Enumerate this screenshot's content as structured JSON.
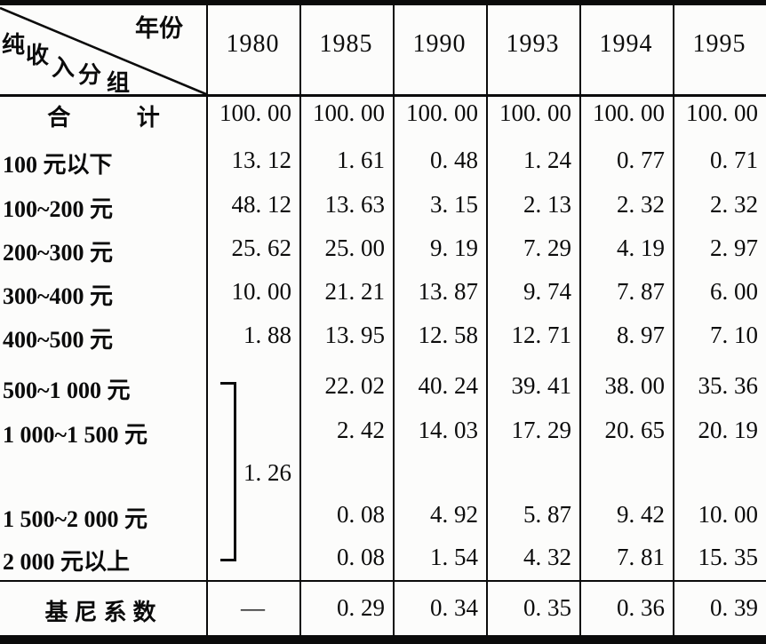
{
  "table": {
    "corner": {
      "top_right_label": "年份",
      "bottom_left_label": "纯收入分组",
      "bottom_left_chars": [
        "纯",
        "收",
        "入",
        "分",
        "组"
      ]
    },
    "col_headers": [
      "1980",
      "1985",
      "1990",
      "1993",
      "1994",
      "1995"
    ],
    "rows": [
      {
        "label": "合 计",
        "values": [
          "100. 00",
          "100. 00",
          "100. 00",
          "100. 00",
          "100. 00",
          "100. 00"
        ]
      },
      {
        "label": "100 元以下",
        "values": [
          "13. 12",
          "1. 61",
          "0. 48",
          "1. 24",
          "0. 77",
          "0. 71"
        ]
      },
      {
        "label": "100~200 元",
        "values": [
          "48. 12",
          "13. 63",
          "3. 15",
          "2. 13",
          "2. 32",
          "2. 32"
        ]
      },
      {
        "label": "200~300 元",
        "values": [
          "25. 62",
          "25. 00",
          "9. 19",
          "7. 29",
          "4. 19",
          "2. 97"
        ]
      },
      {
        "label": "300~400 元",
        "values": [
          "10. 00",
          "21. 21",
          "13. 87",
          "9. 74",
          "7. 87",
          "6. 00"
        ]
      },
      {
        "label": "400~500 元",
        "values": [
          "1. 88",
          "13. 95",
          "12. 58",
          "12. 71",
          "8. 97",
          "7. 10"
        ]
      },
      {
        "label": "500~1 000 元",
        "values": [
          "",
          "22. 02",
          "40. 24",
          "39. 41",
          "38. 00",
          "35. 36"
        ]
      },
      {
        "label": "1 000~1 500 元",
        "values": [
          "",
          "2. 42",
          "14. 03",
          "17. 29",
          "20. 65",
          "20. 19"
        ]
      },
      {
        "label": "",
        "values": [
          "1. 26",
          "",
          "",
          "",
          "",
          ""
        ]
      },
      {
        "label": "1 500~2 000 元",
        "values": [
          "",
          "0. 08",
          "4. 92",
          "5. 87",
          "9. 42",
          "10. 00"
        ]
      },
      {
        "label": "2 000 元以上",
        "values": [
          "",
          "0. 08",
          "1. 54",
          "4. 32",
          "7. 81",
          "15. 35"
        ]
      }
    ],
    "footer": {
      "label": "基尼系数",
      "values": [
        "—",
        "0. 29",
        "0. 34",
        "0. 35",
        "0. 36",
        "0. 39"
      ]
    },
    "bracket_1980": {
      "value": "1. 26",
      "spans_rows": [
        "500~1 000 元",
        "1 000~1 500 元",
        "1 500~2 000 元",
        "2 000 元以上"
      ]
    },
    "colors": {
      "ink": "#0b0b0b",
      "paper": "#fcfcfb"
    }
  }
}
